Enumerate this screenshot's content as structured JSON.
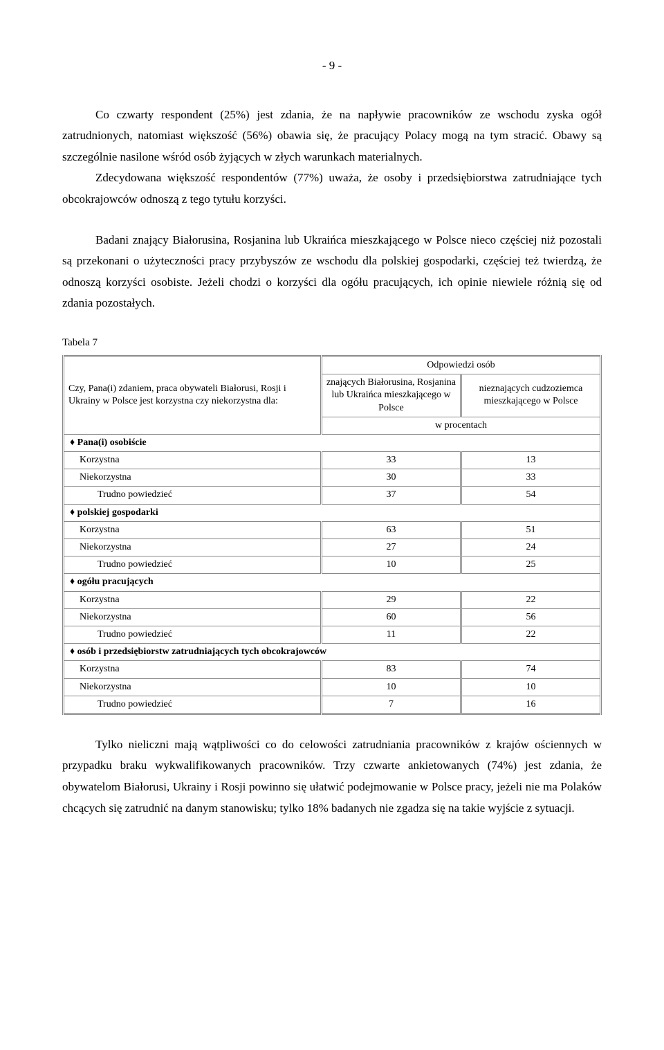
{
  "page_number": "- 9 -",
  "paragraphs": {
    "p1": "Co czwarty respondent (25%) jest zdania, że na napływie pracowników ze wschodu zyska ogół zatrudnionych, natomiast większość (56%) obawia się, że pracujący Polacy mogą na tym stracić. Obawy są szczególnie nasilone wśród osób żyjących w złych warunkach materialnych.",
    "p2": "Zdecydowana większość respondentów (77%) uważa, że osoby i przedsiębiorstwa zatrudniające tych obcokrajowców odnoszą z tego tytułu korzyści.",
    "p3": "Badani znający Białorusina, Rosjanina lub Ukraińca mieszkającego w Polsce nieco częściej niż pozostali są przekonani o użyteczności pracy przybyszów ze wschodu dla polskiej gospodarki, częściej też twierdzą, że odnoszą korzyści osobiste. Jeżeli chodzi o korzyści dla ogółu pracujących, ich opinie niewiele różnią się od zdania pozostałych.",
    "p4": "Tylko nieliczni mają wątpliwości co do celowości zatrudniania pracowników z krajów ościennych w przypadku braku wykwalifikowanych pracowników. Trzy czwarte ankietowanych (74%) jest zdania, że obywatelom Białorusi, Ukrainy i Rosji powinno się ułatwić podejmowanie w Polsce pracy, jeżeli nie ma Polaków chcących się zatrudnić na danym stanowisku; tylko 18% badanych nie zgadza się na takie wyjście z sytuacji."
  },
  "table": {
    "label": "Tabela 7",
    "question": "Czy, Pana(i) zdaniem, praca obywateli Białorusi, Rosji i Ukrainy w Polsce jest korzystna czy niekorzystna dla:",
    "header_top": "Odpowiedzi osób",
    "header_col1": "znających Białorusina, Rosjanina lub Ukraińca mieszkającego w Polsce",
    "header_col2": "nieznających cudzoziemca mieszkającego w Polsce",
    "unit": "w procentach",
    "sections": [
      {
        "title": "♦ Pana(i) osobiście",
        "rows": [
          {
            "label": "Korzystna",
            "v1": "33",
            "v2": "13"
          },
          {
            "label": "Niekorzystna",
            "v1": "30",
            "v2": "33"
          },
          {
            "label": "Trudno powiedzieć",
            "indent": true,
            "v1": "37",
            "v2": "54"
          }
        ]
      },
      {
        "title": "♦ polskiej gospodarki",
        "rows": [
          {
            "label": "Korzystna",
            "v1": "63",
            "v2": "51"
          },
          {
            "label": "Niekorzystna",
            "v1": "27",
            "v2": "24"
          },
          {
            "label": "Trudno powiedzieć",
            "indent": true,
            "v1": "10",
            "v2": "25"
          }
        ]
      },
      {
        "title": "♦ ogółu pracujących",
        "rows": [
          {
            "label": "Korzystna",
            "v1": "29",
            "v2": "22"
          },
          {
            "label": "Niekorzystna",
            "v1": "60",
            "v2": "56"
          },
          {
            "label": "Trudno powiedzieć",
            "indent": true,
            "v1": "11",
            "v2": "22"
          }
        ]
      },
      {
        "title": "♦ osób i przedsiębiorstw zatrudniających tych obcokrajowców",
        "rows": [
          {
            "label": "Korzystna",
            "v1": "83",
            "v2": "74"
          },
          {
            "label": "Niekorzystna",
            "v1": "10",
            "v2": "10"
          },
          {
            "label": "Trudno powiedzieć",
            "indent": true,
            "v1": "7",
            "v2": "16"
          }
        ]
      }
    ]
  }
}
